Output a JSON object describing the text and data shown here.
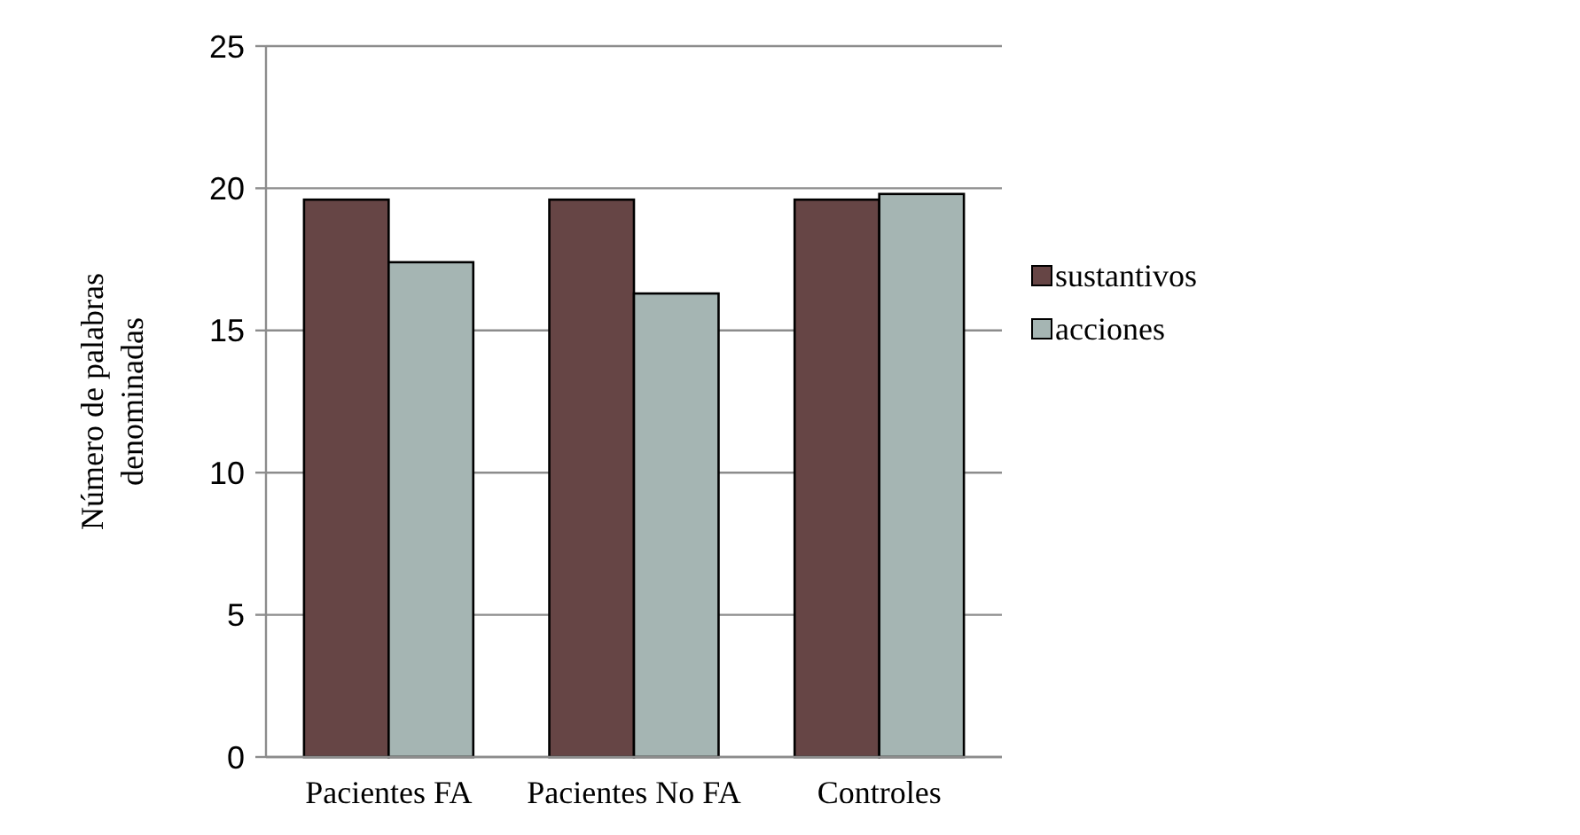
{
  "chart_data": {
    "type": "bar",
    "ylabel": "Número de palabras denominadas",
    "categories": [
      "Pacientes FA",
      "Pacientes No FA",
      "Controles"
    ],
    "series": [
      {
        "name": "sustantivos",
        "color": "#664545",
        "values": [
          19.6,
          19.6,
          19.6
        ]
      },
      {
        "name": "acciones",
        "color": "#a5b5b3",
        "values": [
          17.4,
          16.3,
          19.8
        ]
      }
    ],
    "ylim": [
      0,
      25
    ],
    "yticks": [
      0,
      5,
      10,
      15,
      20,
      25
    ],
    "grid": "y",
    "legend": "right"
  }
}
